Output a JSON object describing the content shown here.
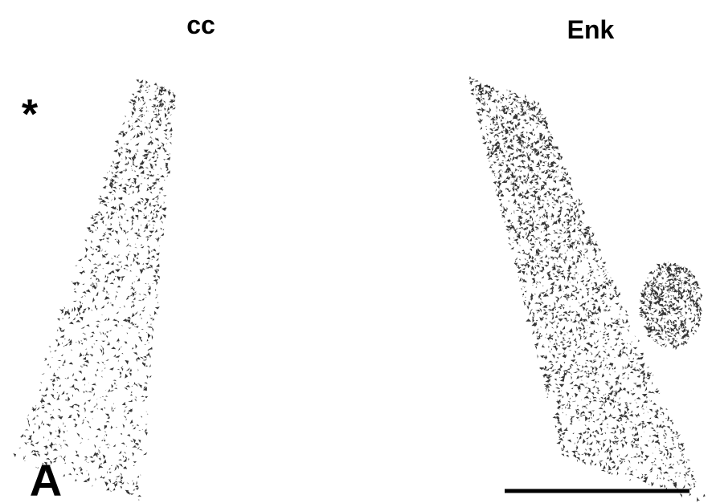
{
  "columns": [
    "cc",
    "Enk"
  ],
  "marker": "*",
  "panel_label": "A"
}
